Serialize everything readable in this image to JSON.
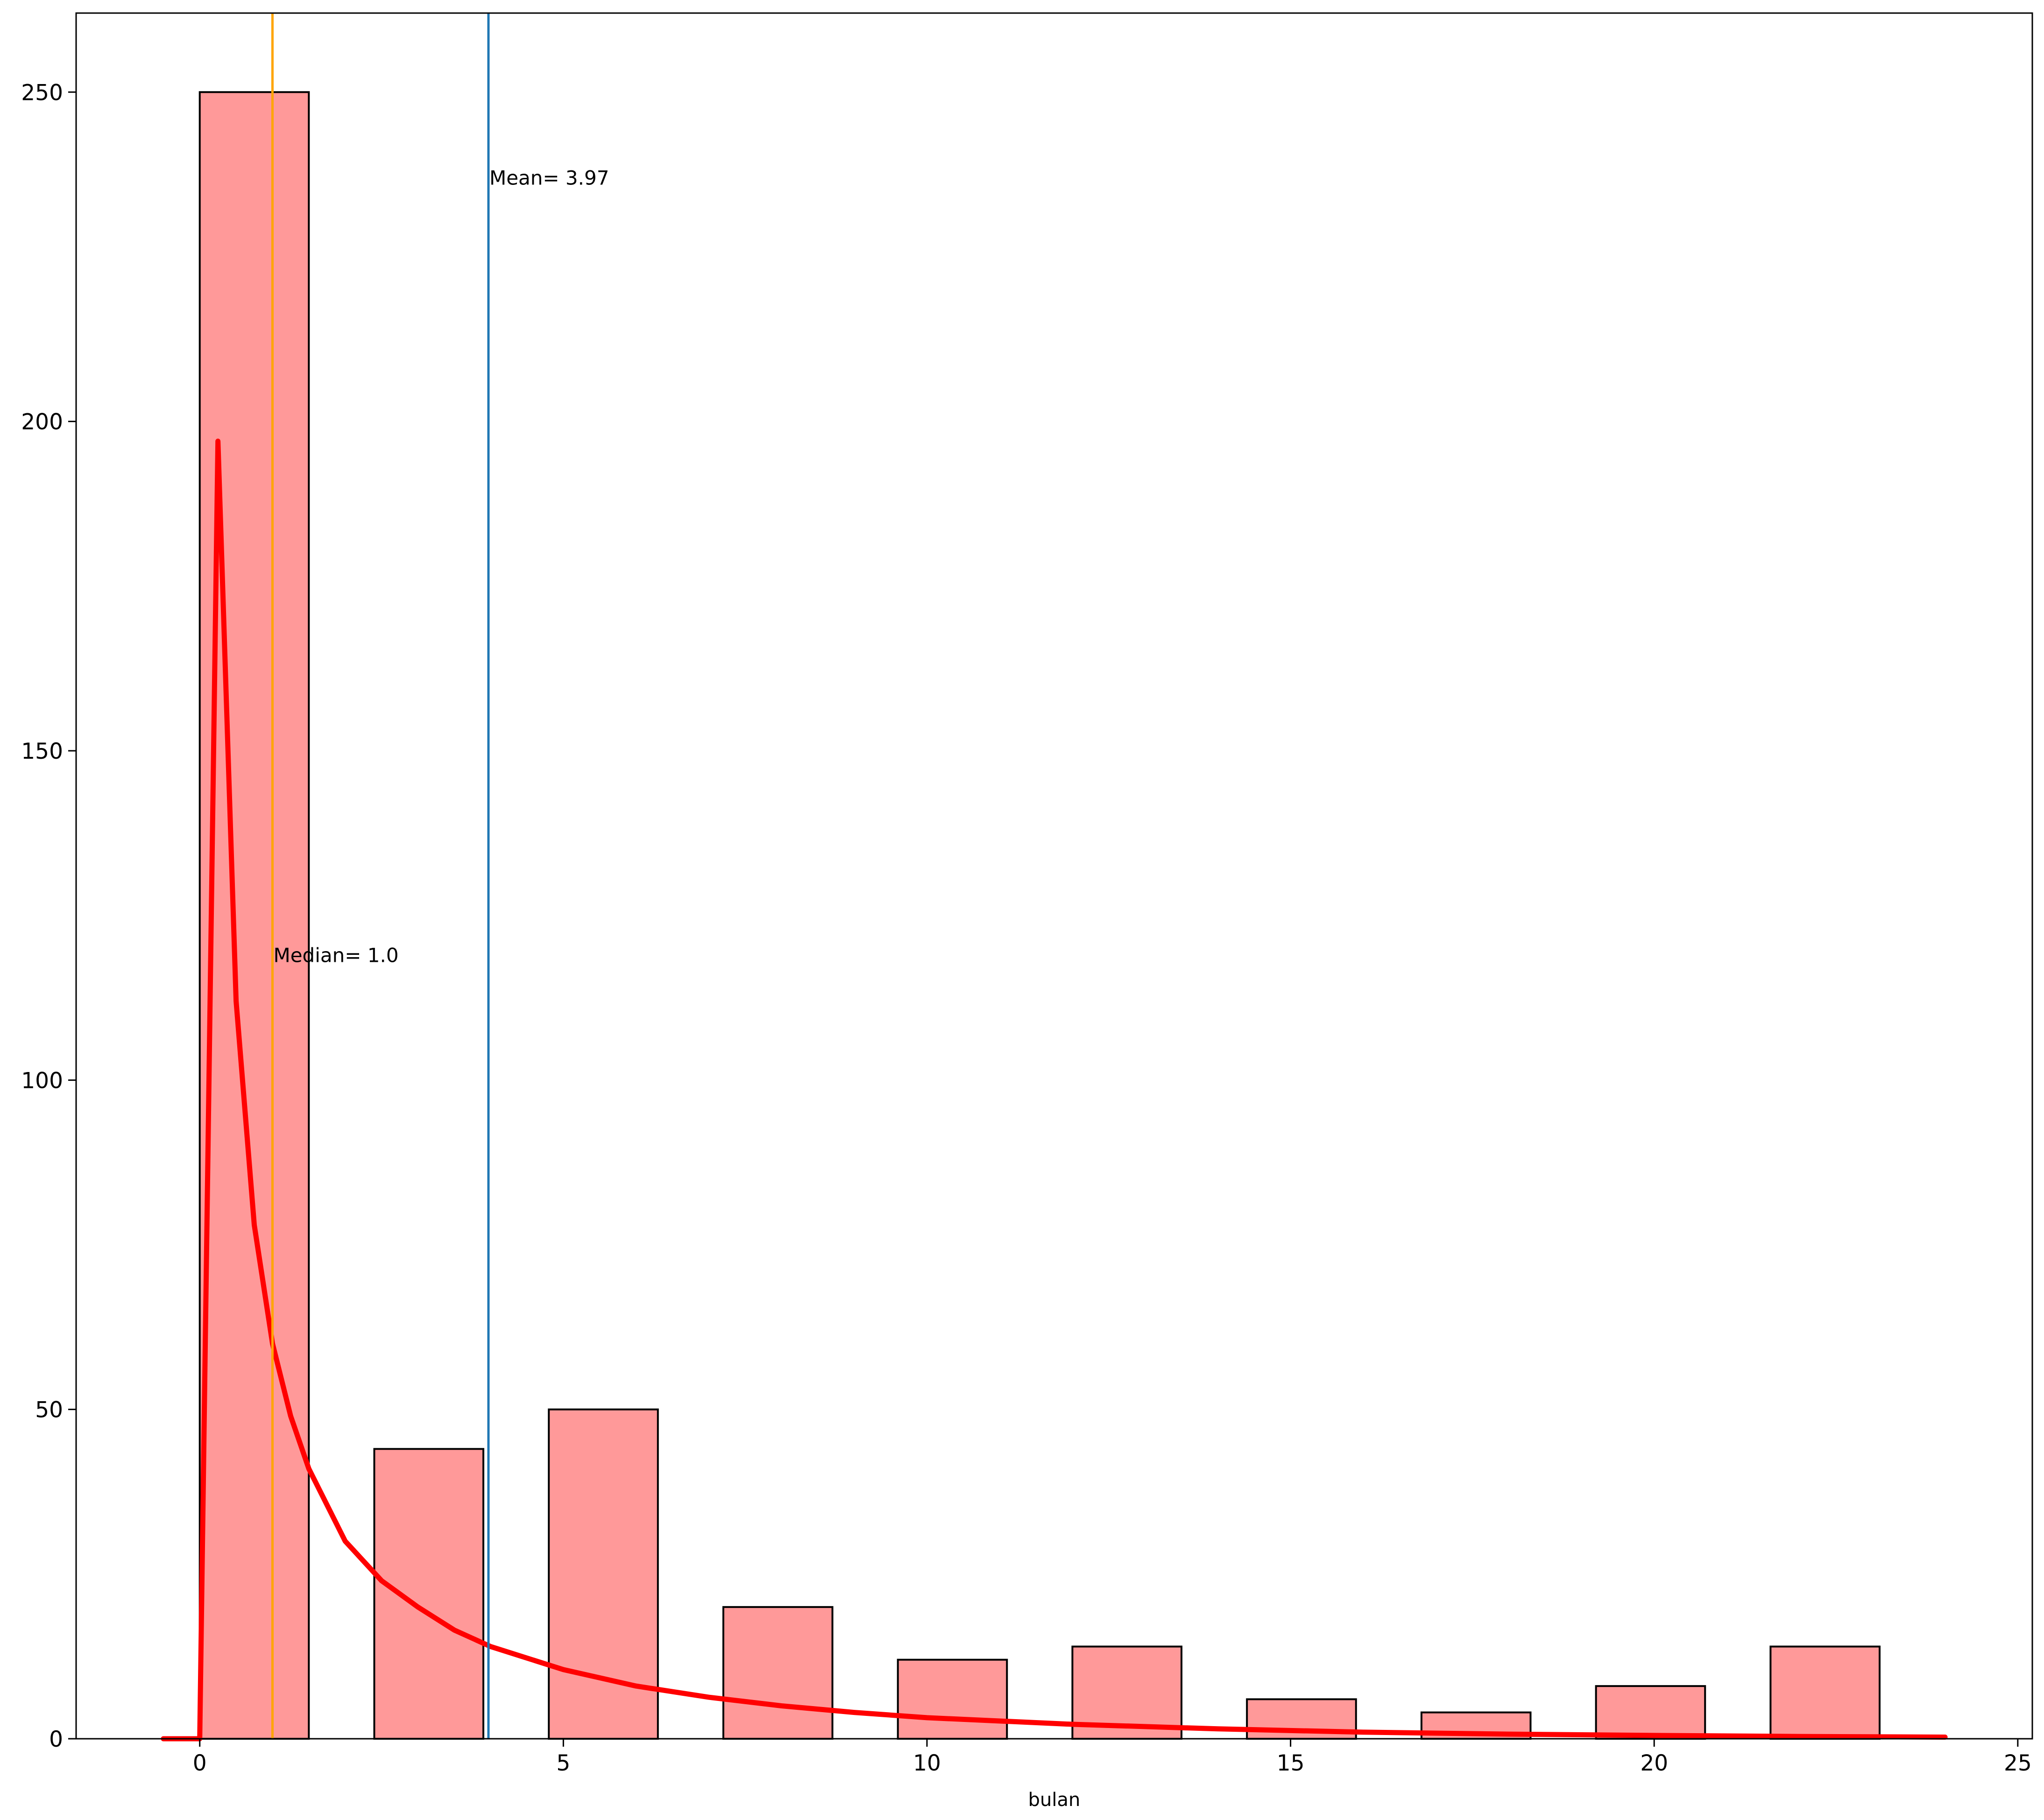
{
  "chart_data": {
    "type": "bar",
    "xlabel": "bulan",
    "ylabel": "",
    "xlim": [
      -1.7,
      25.2
    ],
    "ylim": [
      0,
      262
    ],
    "xticks": [
      0,
      5,
      10,
      15,
      20,
      25
    ],
    "yticks": [
      0,
      50,
      100,
      150,
      200,
      250
    ],
    "bins": [
      {
        "x0": 0.0,
        "x1": 1.5,
        "count": 250
      },
      {
        "x0": 2.4,
        "x1": 3.9,
        "count": 44
      },
      {
        "x0": 4.8,
        "x1": 6.3,
        "count": 50
      },
      {
        "x0": 7.2,
        "x1": 8.7,
        "count": 20
      },
      {
        "x0": 9.6,
        "x1": 11.1,
        "count": 12
      },
      {
        "x0": 12.0,
        "x1": 13.5,
        "count": 14
      },
      {
        "x0": 14.4,
        "x1": 15.9,
        "count": 6
      },
      {
        "x0": 16.8,
        "x1": 18.3,
        "count": 4
      },
      {
        "x0": 19.2,
        "x1": 20.7,
        "count": 8
      },
      {
        "x0": 21.6,
        "x1": 23.1,
        "count": 14
      }
    ],
    "bar_color": "#ff9999",
    "bar_edge_color": "#000000",
    "curve": {
      "color": "#ff0000",
      "points": [
        [
          -0.5,
          0
        ],
        [
          0.0,
          0
        ],
        [
          0.25,
          197
        ],
        [
          0.5,
          112
        ],
        [
          0.75,
          78
        ],
        [
          1.0,
          60
        ],
        [
          1.25,
          49
        ],
        [
          1.5,
          41
        ],
        [
          2.0,
          30
        ],
        [
          2.5,
          24
        ],
        [
          3.0,
          20
        ],
        [
          3.5,
          16.5
        ],
        [
          4.0,
          14
        ],
        [
          5.0,
          10.5
        ],
        [
          6.0,
          8
        ],
        [
          7.0,
          6.3
        ],
        [
          8.0,
          5
        ],
        [
          9.0,
          4
        ],
        [
          10.0,
          3.2
        ],
        [
          12.0,
          2.2
        ],
        [
          14.0,
          1.5
        ],
        [
          16.0,
          1.0
        ],
        [
          18.0,
          0.7
        ],
        [
          20.0,
          0.5
        ],
        [
          22.0,
          0.35
        ],
        [
          24.0,
          0.25
        ]
      ]
    },
    "reference_lines": [
      {
        "name": "median",
        "x": 1.0,
        "label": "Median= 1.0",
        "label_y": 119,
        "color": "#ffa500"
      },
      {
        "name": "mean",
        "x": 3.97,
        "label": "Mean= 3.97",
        "label_y": 237,
        "color": "#1f77b4"
      }
    ],
    "grid": false,
    "legend": "none"
  }
}
